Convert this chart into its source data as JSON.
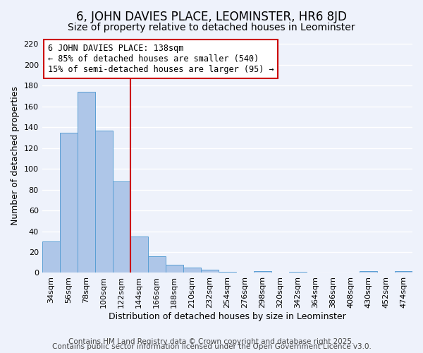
{
  "title": "6, JOHN DAVIES PLACE, LEOMINSTER, HR6 8JD",
  "subtitle": "Size of property relative to detached houses in Leominster",
  "xlabel": "Distribution of detached houses by size in Leominster",
  "ylabel": "Number of detached properties",
  "bar_values": [
    30,
    135,
    174,
    137,
    88,
    35,
    16,
    8,
    5,
    3,
    1,
    0,
    2,
    0,
    1,
    0,
    0,
    0,
    2,
    0,
    2
  ],
  "bin_labels": [
    "34sqm",
    "56sqm",
    "78sqm",
    "100sqm",
    "122sqm",
    "144sqm",
    "166sqm",
    "188sqm",
    "210sqm",
    "232sqm",
    "254sqm",
    "276sqm",
    "298sqm",
    "320sqm",
    "342sqm",
    "364sqm",
    "386sqm",
    "408sqm",
    "430sqm",
    "452sqm",
    "474sqm"
  ],
  "bar_color": "#aec6e8",
  "bar_edge_color": "#5a9fd4",
  "vline_x_index": 4.5,
  "vline_color": "#cc0000",
  "annotation_text": "6 JOHN DAVIES PLACE: 138sqm\n← 85% of detached houses are smaller (540)\n15% of semi-detached houses are larger (95) →",
  "annotation_box_color": "#ffffff",
  "annotation_box_edge": "#cc0000",
  "ylim": [
    0,
    225
  ],
  "yticks": [
    0,
    20,
    40,
    60,
    80,
    100,
    120,
    140,
    160,
    180,
    200,
    220
  ],
  "footer1": "Contains HM Land Registry data © Crown copyright and database right 2025.",
  "footer2": "Contains public sector information licensed under the Open Government Licence v3.0.",
  "background_color": "#eef2fb",
  "grid_color": "#ffffff",
  "title_fontsize": 12,
  "subtitle_fontsize": 10,
  "axis_label_fontsize": 9,
  "tick_fontsize": 8,
  "annotation_fontsize": 8.5,
  "footer_fontsize": 7.5
}
